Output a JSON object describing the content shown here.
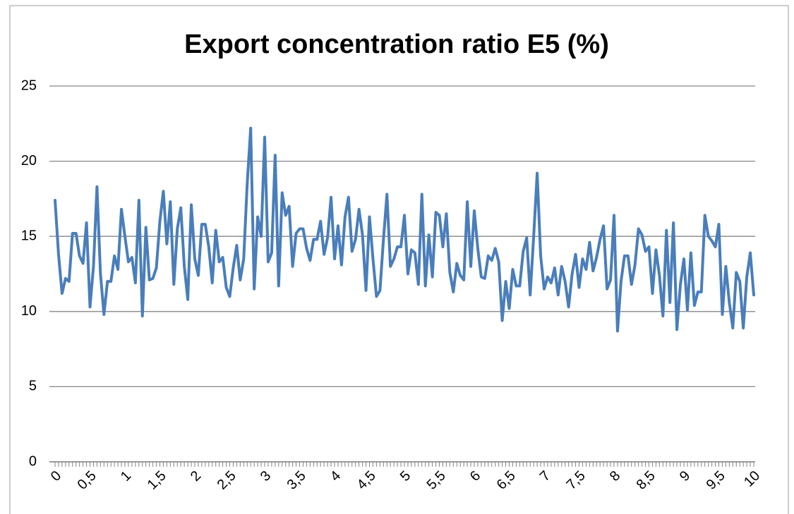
{
  "chart_data": {
    "type": "line",
    "title": "Export concentration ratio E5 (%)",
    "categories": [
      "0",
      null,
      null,
      null,
      null,
      null,
      null,
      null,
      null,
      null,
      "0,5",
      null,
      null,
      null,
      null,
      null,
      null,
      null,
      null,
      null,
      "1",
      null,
      null,
      null,
      null,
      null,
      null,
      null,
      null,
      null,
      "1,5",
      null,
      null,
      null,
      null,
      null,
      null,
      null,
      null,
      null,
      "2",
      null,
      null,
      null,
      null,
      null,
      null,
      null,
      null,
      null,
      "2,5",
      null,
      null,
      null,
      null,
      null,
      null,
      null,
      null,
      null,
      "3",
      null,
      null,
      null,
      null,
      null,
      null,
      null,
      null,
      null,
      "3,5",
      null,
      null,
      null,
      null,
      null,
      null,
      null,
      null,
      null,
      "4",
      null,
      null,
      null,
      null,
      null,
      null,
      null,
      null,
      null,
      "4,5",
      null,
      null,
      null,
      null,
      null,
      null,
      null,
      null,
      null,
      "5",
      null,
      null,
      null,
      null,
      null,
      null,
      null,
      null,
      null,
      "5,5",
      null,
      null,
      null,
      null,
      null,
      null,
      null,
      null,
      null,
      "6",
      null,
      null,
      null,
      null,
      null,
      null,
      null,
      null,
      null,
      "6,5",
      null,
      null,
      null,
      null,
      null,
      null,
      null,
      null,
      null,
      "7",
      null,
      null,
      null,
      null,
      null,
      null,
      null,
      null,
      null,
      "7,5",
      null,
      null,
      null,
      null,
      null,
      null,
      null,
      null,
      null,
      "8",
      null,
      null,
      null,
      null,
      null,
      null,
      null,
      null,
      null,
      "8,5",
      null,
      null,
      null,
      null,
      null,
      null,
      null,
      null,
      null,
      "9",
      null,
      null,
      null,
      null,
      null,
      null,
      null,
      null,
      null,
      "9,5",
      null,
      null,
      null,
      null,
      null,
      null,
      null,
      null,
      null,
      "10"
    ],
    "values": [
      17.4,
      13.8,
      11.2,
      12.2,
      12.0,
      15.2,
      15.2,
      13.7,
      13.2,
      15.9,
      10.3,
      13.0,
      18.3,
      12.5,
      9.8,
      12.0,
      12.0,
      13.7,
      12.8,
      16.8,
      15.0,
      13.3,
      13.6,
      11.9,
      17.4,
      9.7,
      15.6,
      12.1,
      12.2,
      12.9,
      16.0,
      18.0,
      14.5,
      17.3,
      11.8,
      15.5,
      16.9,
      13.0,
      10.8,
      17.1,
      13.5,
      12.4,
      15.8,
      15.8,
      14.3,
      11.9,
      15.4,
      13.3,
      13.6,
      11.6,
      11.0,
      12.9,
      14.4,
      12.1,
      13.5,
      18.5,
      22.2,
      11.5,
      16.3,
      15.0,
      21.6,
      13.3,
      13.9,
      20.4,
      11.7,
      17.9,
      16.4,
      17.0,
      13.0,
      15.2,
      15.5,
      15.5,
      14.2,
      13.4,
      14.8,
      14.8,
      16.0,
      13.8,
      14.9,
      17.6,
      13.5,
      15.7,
      13.1,
      16.3,
      17.6,
      14.0,
      14.8,
      16.8,
      15.1,
      11.4,
      16.3,
      13.5,
      11.0,
      11.4,
      14.8,
      17.8,
      13.0,
      13.5,
      14.3,
      14.3,
      16.4,
      12.5,
      14.1,
      13.9,
      11.8,
      17.8,
      11.7,
      15.1,
      12.3,
      16.6,
      16.4,
      14.3,
      16.5,
      12.6,
      11.3,
      13.2,
      12.4,
      12.1,
      17.3,
      13.0,
      16.7,
      14.2,
      12.3,
      12.2,
      13.7,
      13.4,
      14.2,
      13.3,
      9.4,
      12.0,
      10.2,
      12.8,
      11.7,
      11.7,
      14.0,
      14.9,
      11.1,
      15.0,
      19.2,
      13.7,
      11.5,
      12.3,
      11.9,
      12.9,
      11.1,
      13.0,
      12.0,
      10.3,
      12.5,
      13.8,
      11.6,
      13.5,
      12.8,
      14.6,
      12.7,
      13.6,
      14.8,
      15.7,
      11.5,
      12.1,
      16.4,
      8.7,
      12.0,
      13.7,
      13.7,
      11.8,
      13.1,
      15.5,
      15.1,
      14.0,
      14.3,
      11.2,
      14.1,
      12.4,
      9.7,
      15.4,
      10.6,
      15.9,
      8.8,
      11.8,
      13.5,
      10.1,
      13.9,
      10.4,
      11.3,
      11.3,
      16.4,
      15.0,
      14.7,
      14.3,
      15.8,
      9.8,
      13.0,
      10.6,
      8.9,
      12.6,
      12.0,
      8.9,
      12.3,
      13.9,
      11.1
    ],
    "color": "#4a7ebb",
    "ylim": [
      0,
      25
    ],
    "yticks": [
      0,
      5,
      10,
      15,
      20,
      25
    ],
    "grid": true
  }
}
